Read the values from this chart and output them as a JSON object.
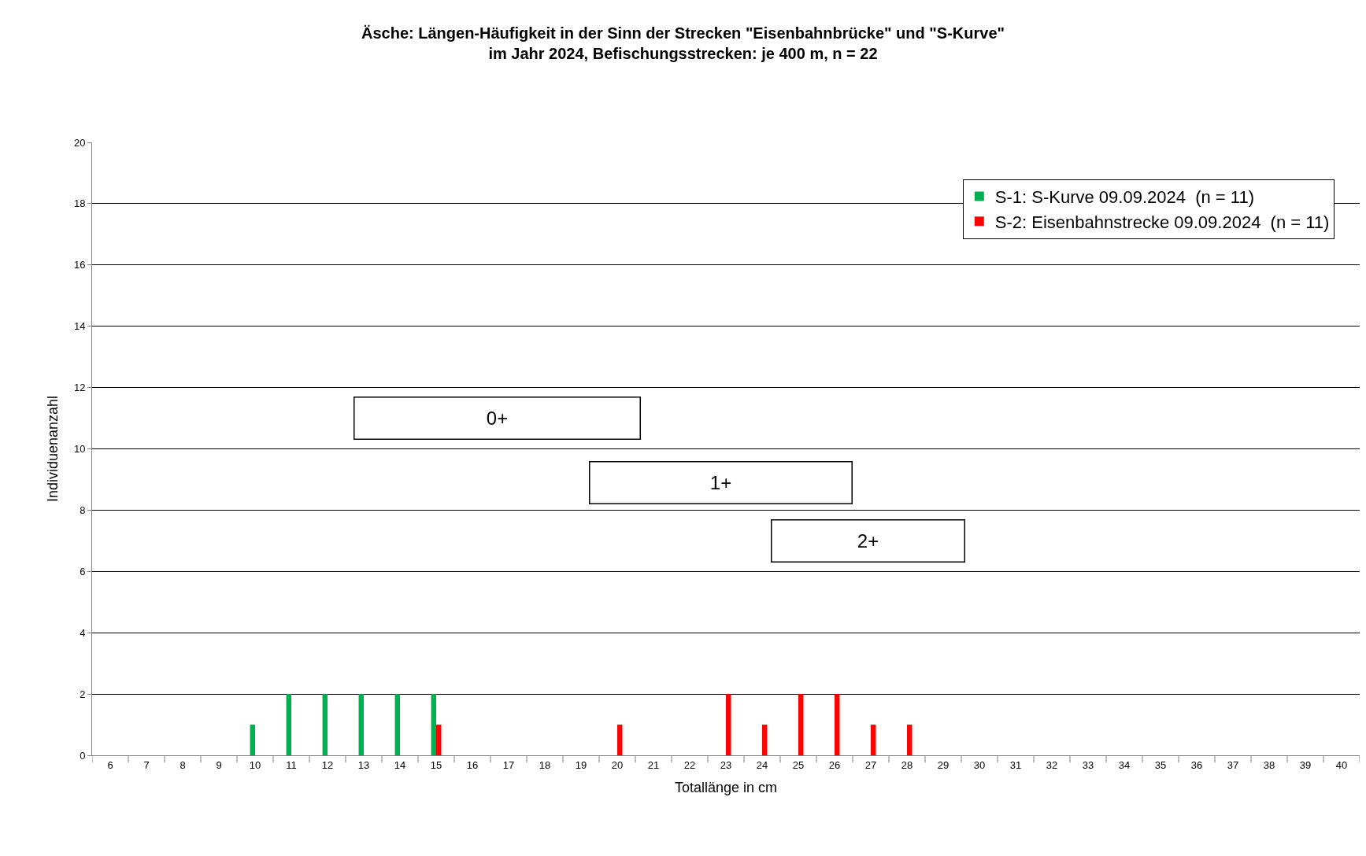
{
  "chart_data": {
    "type": "bar",
    "title": "Äsche: Längen-Häufigkeit in der Sinn der Strecken \"Eisenbahnbrücke\" und \"S-Kurve\"\nim Jahr 2024, Befischungsstrecken: je 400 m, n = 22",
    "xlabel": "Totallänge in cm",
    "ylabel": "Individuenanzahl",
    "categories": [
      "6",
      "7",
      "8",
      "9",
      "10",
      "11",
      "12",
      "13",
      "14",
      "15",
      "16",
      "17",
      "18",
      "19",
      "20",
      "21",
      "22",
      "23",
      "24",
      "25",
      "26",
      "27",
      "28",
      "29",
      "30",
      "31",
      "32",
      "33",
      "34",
      "35",
      "36",
      "37",
      "38",
      "39",
      "40"
    ],
    "series": [
      {
        "name": "S-1: S-Kurve 09.09.2024  (n = 11)",
        "color": "#00b050",
        "values": [
          0,
          0,
          0,
          0,
          1,
          2,
          2,
          2,
          2,
          2,
          0,
          0,
          0,
          0,
          0,
          0,
          0,
          0,
          0,
          0,
          0,
          0,
          0,
          0,
          0,
          0,
          0,
          0,
          0,
          0,
          0,
          0,
          0,
          0,
          0
        ]
      },
      {
        "name": "S-2: Eisenbahnstrecke 09.09.2024  (n = 11)",
        "color": "#ff0000",
        "values": [
          0,
          0,
          0,
          0,
          0,
          0,
          0,
          0,
          0,
          1,
          0,
          0,
          0,
          0,
          1,
          0,
          0,
          2,
          1,
          2,
          2,
          1,
          1,
          0,
          0,
          0,
          0,
          0,
          0,
          0,
          0,
          0,
          0,
          0,
          0
        ]
      }
    ],
    "ylim": [
      0,
      20
    ],
    "yticks": [
      0,
      2,
      4,
      6,
      8,
      10,
      12,
      14,
      16,
      18,
      20
    ],
    "grid": "y",
    "legend": "top right",
    "annotations": [
      "0+",
      "1+",
      "2+"
    ]
  }
}
